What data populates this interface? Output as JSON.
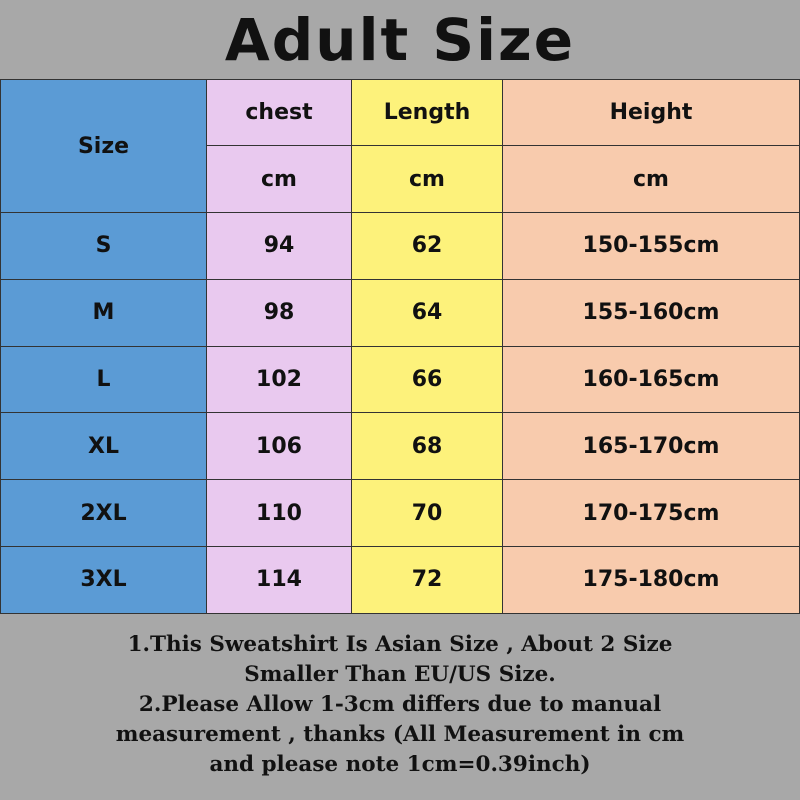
{
  "title": "Adult Size",
  "colors": {
    "background": "#a8a8a8",
    "size_col": "#5b9bd5",
    "chest_col": "#e9c9ef",
    "length_col": "#fdf27b",
    "height_col": "#f8cbad"
  },
  "header": {
    "size": "Size",
    "chest": "chest",
    "length": "Length",
    "height": "Height",
    "unit_chest": "cm",
    "unit_length": "cm",
    "unit_height": "cm"
  },
  "rows": [
    {
      "size": "S",
      "chest": "94",
      "length": "62",
      "height": "150-155cm"
    },
    {
      "size": "M",
      "chest": "98",
      "length": "64",
      "height": "155-160cm"
    },
    {
      "size": "L",
      "chest": "102",
      "length": "66",
      "height": "160-165cm"
    },
    {
      "size": "XL",
      "chest": "106",
      "length": "68",
      "height": "165-170cm"
    },
    {
      "size": "2XL",
      "chest": "110",
      "length": "70",
      "height": "170-175cm"
    },
    {
      "size": "3XL",
      "chest": "114",
      "length": "72",
      "height": "175-180cm"
    }
  ],
  "notes": [
    "1.This Sweatshirt Is Asian Size , About 2 Size",
    "Smaller Than EU/US Size.",
    "2.Please Allow 1-3cm differs due to manual",
    "measurement , thanks (All Measurement in cm",
    "and please note 1cm=0.39inch)"
  ]
}
